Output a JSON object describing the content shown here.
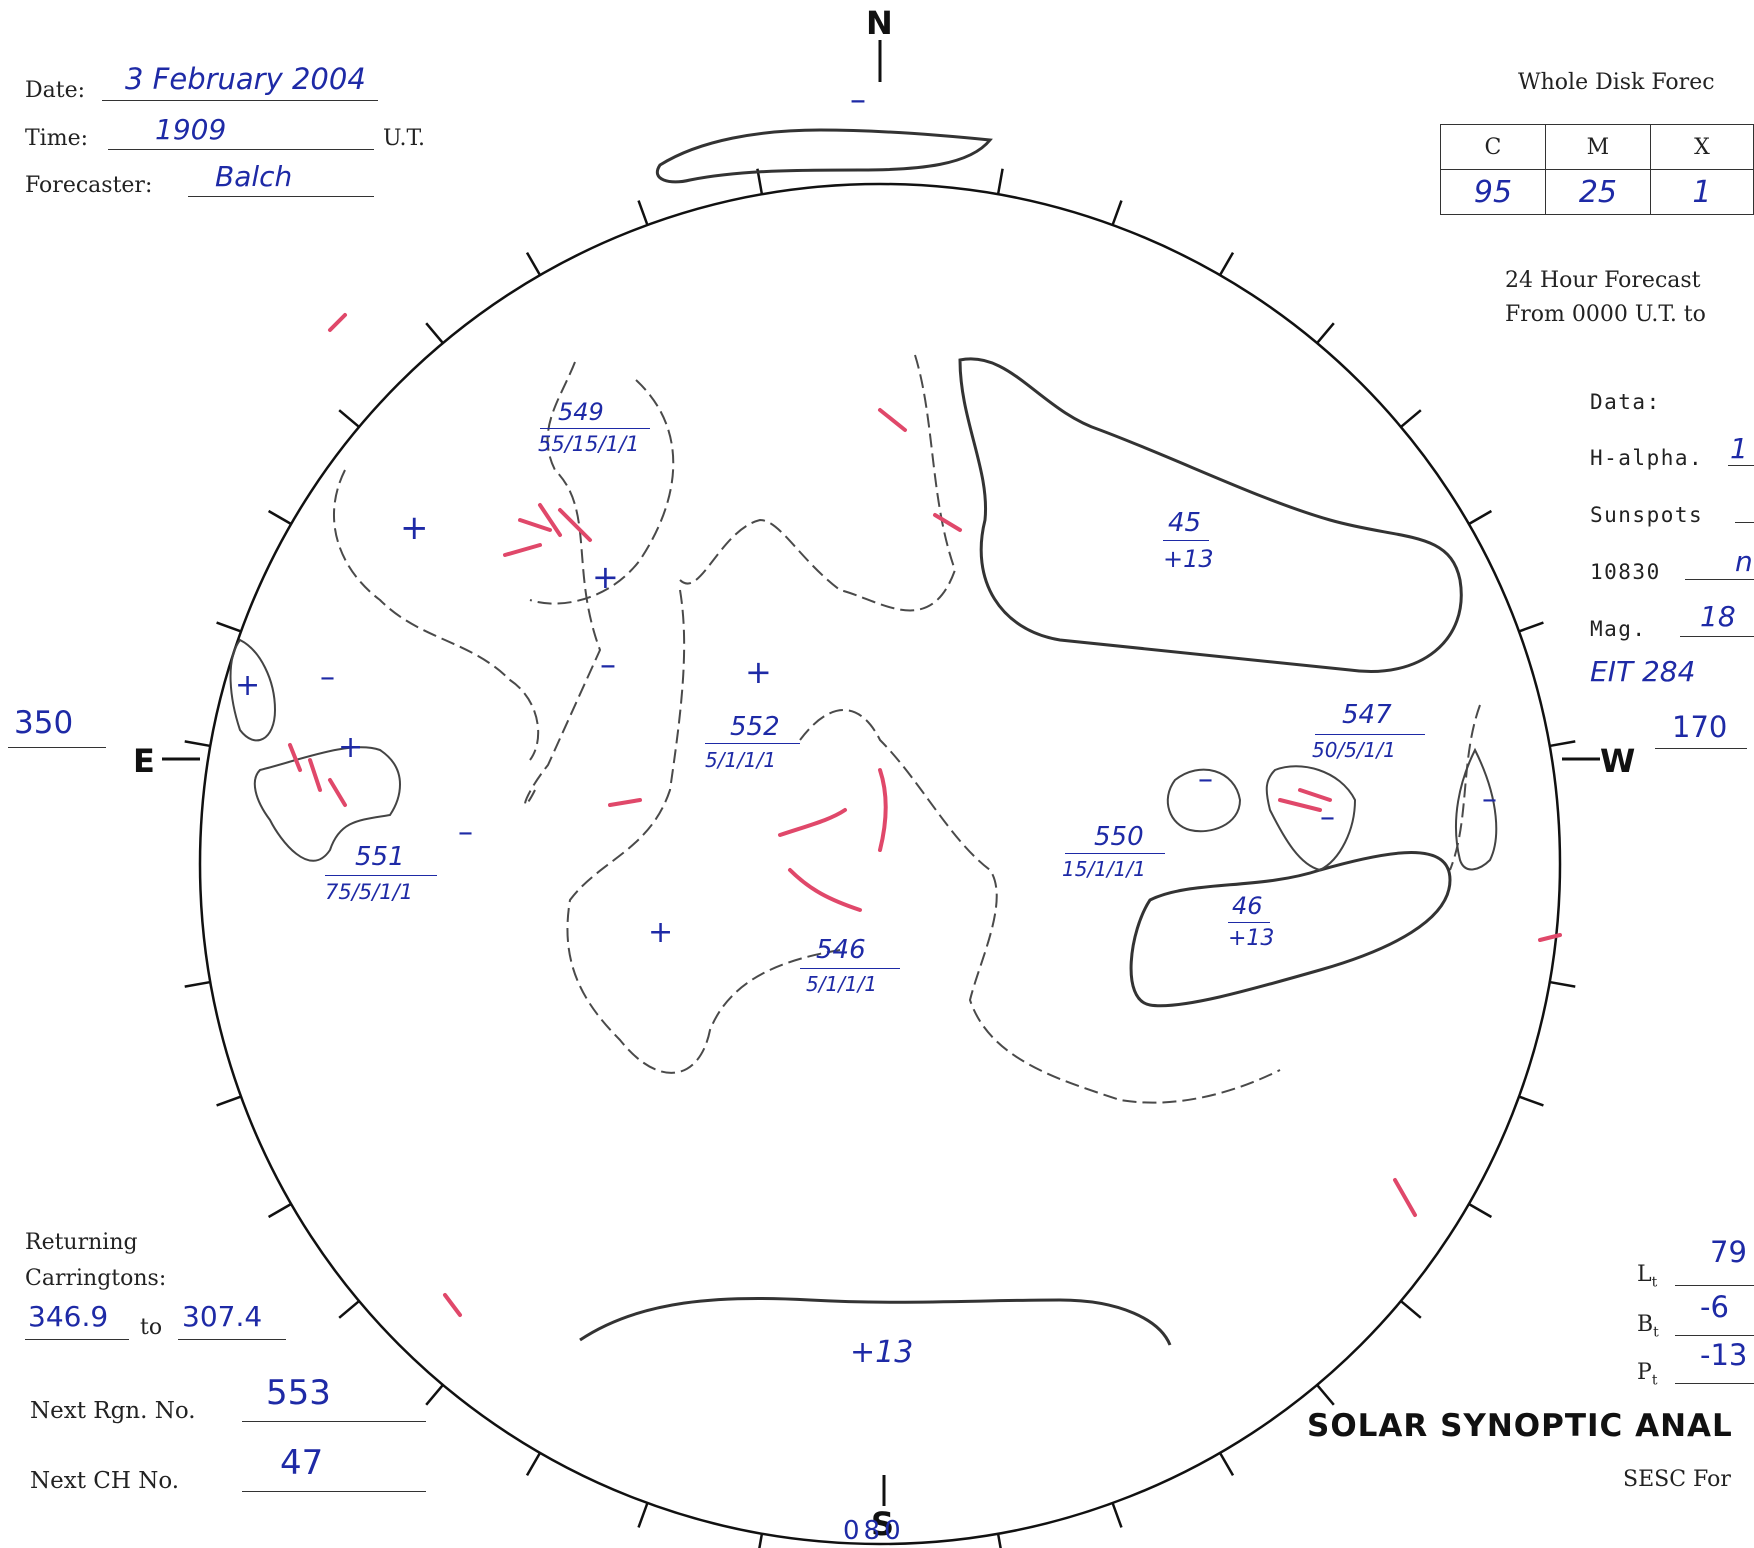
{
  "header": {
    "date_label": "Date:",
    "date_value": "3 February 2004",
    "time_label": "Time:",
    "time_value": "1909",
    "time_unit": "U.T.",
    "forecaster_label": "Forecaster:",
    "forecaster_value": "Balch"
  },
  "forecast": {
    "title": "Whole Disk Forec",
    "columns": [
      "C",
      "M",
      "X"
    ],
    "values": [
      "95",
      "25",
      "1"
    ],
    "period_line1": "24 Hour Forecast",
    "period_line2": "From 0000 U.T. to"
  },
  "data_panel": {
    "title": "Data:",
    "halpha_label": "H-alpha.",
    "halpha_value": "1",
    "sunspots_label": "Sunspots",
    "he10830_label": "10830",
    "he10830_value": "n",
    "mag_label": "Mag.",
    "mag_value": "18",
    "eit_value": "EIT 284"
  },
  "compass": {
    "north": "N",
    "south": "S",
    "east": "E",
    "west": "W",
    "east_value": "350",
    "west_value": "170",
    "south_value": "080"
  },
  "regions": [
    {
      "number": "549",
      "class": "55/15/1/1"
    },
    {
      "number": "552",
      "class": "5/1/1/1"
    },
    {
      "number": "551",
      "class": "75/5/1/1"
    },
    {
      "number": "546",
      "class": "5/1/1/1"
    },
    {
      "number": "550",
      "class": "15/1/1/1"
    },
    {
      "number": "547",
      "class": "50/5/1/1"
    }
  ],
  "coronal_holes": [
    {
      "number": "45",
      "polarity": "+13"
    },
    {
      "number": "46",
      "polarity": "+13"
    }
  ],
  "south_polar_hole": "+13",
  "polarity_marks": {
    "plus": "+",
    "minus": "–"
  },
  "returning": {
    "label_line1": "Returning",
    "label_line2": "Carringtons:",
    "from": "346.9",
    "to_word": "to",
    "to": "307.4"
  },
  "next_region": {
    "label": "Next Rgn. No.",
    "value": "553"
  },
  "next_ch": {
    "label": "Next CH No.",
    "value": "47"
  },
  "orientation": {
    "lt_label": "L",
    "lt_value": "79",
    "bt_label": "B",
    "bt_value": "-6",
    "pt_label": "P",
    "pt_value": "-13",
    "sub": "t"
  },
  "footer": {
    "title": "SOLAR SYNOPTIC ANAL",
    "subtitle": "SESC For"
  },
  "colors": {
    "ink_blue": "#1e2aa6",
    "pencil_gray": "#555555",
    "plage_red": "#e0486a"
  }
}
